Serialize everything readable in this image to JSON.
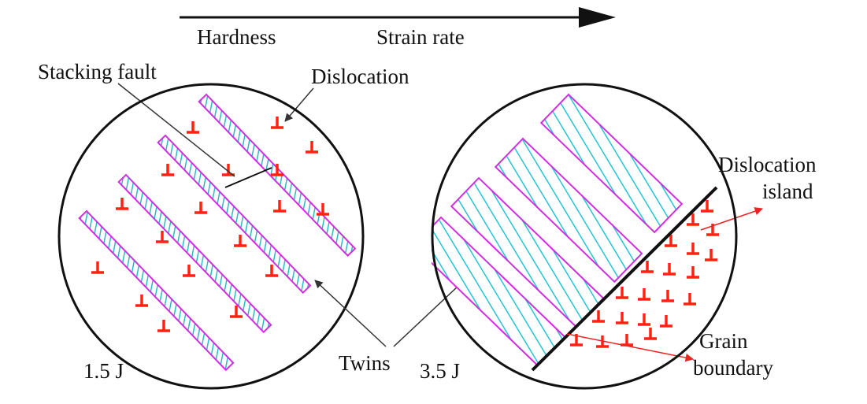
{
  "arrow": {
    "labels": [
      "Hardness",
      "Strain rate"
    ]
  },
  "left_panel": {
    "energy": "1.5 J",
    "stacking_fault": "Stacking fault",
    "dislocation": "Dislocation"
  },
  "shared": {
    "twins": "Twins"
  },
  "right_panel": {
    "energy": "3.5 J",
    "dislocation_island": [
      "Dislocation",
      "island"
    ],
    "grain_boundary": [
      "Grain",
      "boundary"
    ]
  }
}
